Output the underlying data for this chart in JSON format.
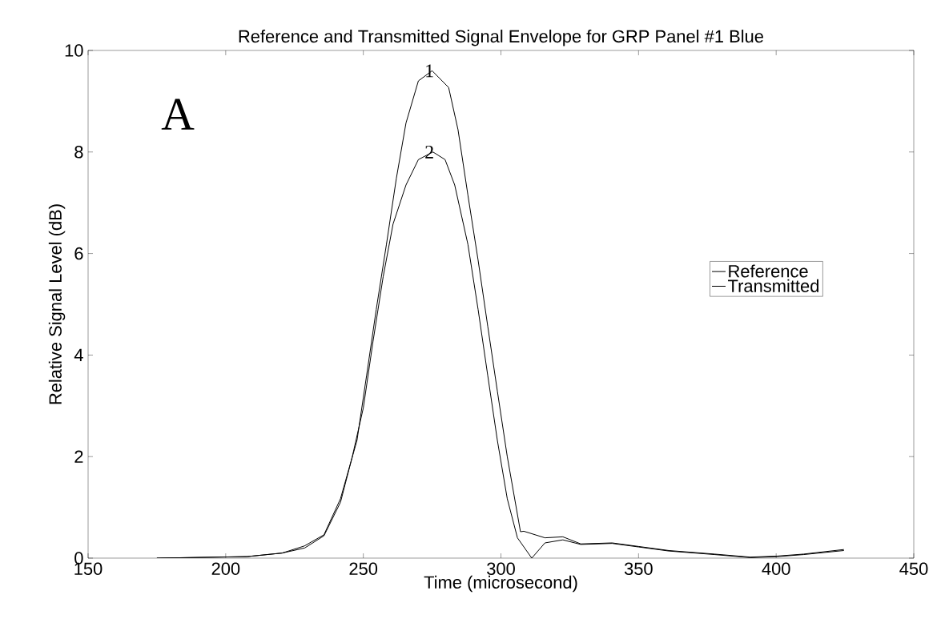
{
  "chart_data": {
    "type": "line",
    "title": "Reference and Transmitted Signal Envelope for GRP Panel #1 Blue",
    "xlabel": "Time (microsecond)",
    "ylabel": "Relative Signal Level (dB)",
    "xlim": [
      150,
      450
    ],
    "ylim": [
      0,
      10
    ],
    "xticks": [
      150,
      200,
      250,
      300,
      350,
      400,
      450
    ],
    "yticks": [
      0,
      2,
      4,
      6,
      8,
      10
    ],
    "grid": false,
    "legend": "right",
    "marker": "none",
    "line_style": "solid",
    "annotations": [
      "A",
      {
        "text": "1",
        "x": 274,
        "y": 9.6
      },
      {
        "text": "2",
        "x": 274,
        "y": 8.0
      }
    ],
    "series": [
      {
        "name": "Reference",
        "color": "#000000",
        "x": [
          175,
          207.7,
          220.5,
          228.6,
          235.7,
          241.7,
          247.7,
          251.2,
          254.7,
          258.4,
          262,
          265.5,
          270,
          275,
          281,
          284.4,
          288,
          291.7,
          295.2,
          298.7,
          302.3,
          307.1,
          308.3,
          316,
          322.5,
          329,
          340.4,
          350,
          361,
          377.6,
          390.6,
          400.3,
          410,
          424.6
        ],
        "values": [
          0,
          0.03,
          0.1,
          0.24,
          0.46,
          1.17,
          2.32,
          3.6,
          4.9,
          6.18,
          7.48,
          8.57,
          9.4,
          9.6,
          9.27,
          8.44,
          7.15,
          5.87,
          4.57,
          3.29,
          2.0,
          0.52,
          0.53,
          0.4,
          0.42,
          0.28,
          0.3,
          0.23,
          0.15,
          0.08,
          0.02,
          0.04,
          0.08,
          0.17
        ]
      },
      {
        "name": "Transmitted",
        "color": "#000000",
        "x": [
          175,
          207.7,
          220.5,
          228.7,
          235.7,
          241.7,
          246,
          250,
          253.5,
          257.2,
          260.8,
          265.5,
          270,
          275.3,
          279.7,
          283.2,
          288,
          291.7,
          295.2,
          298.7,
          302.3,
          306,
          311.2,
          316,
          322.5,
          329,
          340.4,
          350,
          361,
          377.6,
          390.6,
          400.3,
          410,
          424.6
        ],
        "values": [
          0,
          0.03,
          0.1,
          0.2,
          0.44,
          1.1,
          2.0,
          2.96,
          4.26,
          5.54,
          6.58,
          7.35,
          7.85,
          8.0,
          7.85,
          7.35,
          6.18,
          4.9,
          3.6,
          2.32,
          1.17,
          0.4,
          0,
          0.3,
          0.36,
          0.27,
          0.29,
          0.22,
          0.14,
          0.07,
          0.01,
          0.03,
          0.07,
          0.15
        ]
      }
    ]
  }
}
